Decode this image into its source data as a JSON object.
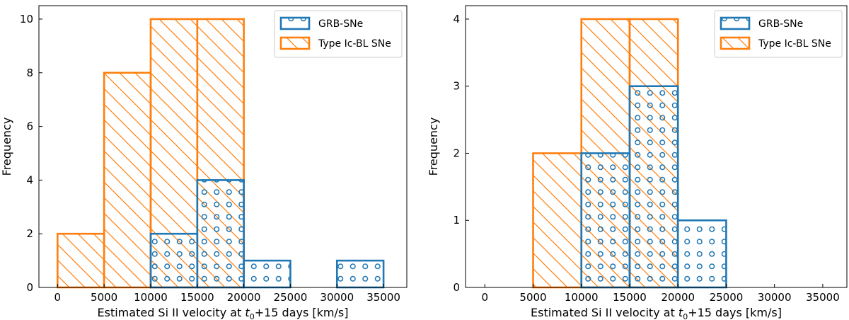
{
  "chart_data": [
    {
      "type": "bar",
      "subtype": "histogram",
      "xlabel_prefix": "Estimated Si II velocity at ",
      "xlabel_var": "t",
      "xlabel_sub": "0",
      "xlabel_suffix": "+15 days [km/s]",
      "ylabel": "Frequency",
      "xlim": [
        -2000,
        37500
      ],
      "ylim": [
        0,
        10.5
      ],
      "xticks": [
        0,
        5000,
        10000,
        15000,
        20000,
        25000,
        30000,
        35000
      ],
      "yticks": [
        0,
        2,
        4,
        6,
        8,
        10
      ],
      "bin_edges": [
        0,
        5000,
        10000,
        15000,
        20000,
        25000,
        30000,
        35000
      ],
      "series": [
        {
          "name": "Type Ic-BL SNe",
          "color": "#ff7f0e",
          "hatch": "diagonal",
          "values": [
            2,
            8,
            10,
            10,
            0,
            0,
            0
          ]
        },
        {
          "name": "GRB-SNe",
          "color": "#1f77b4",
          "hatch": "circles",
          "values": [
            0,
            0,
            2,
            4,
            1,
            0,
            1
          ]
        }
      ],
      "legend": {
        "position": "top-right",
        "entries": [
          "GRB-SNe",
          "Type Ic-BL SNe"
        ]
      }
    },
    {
      "type": "bar",
      "subtype": "histogram",
      "xlabel_prefix": "Estimated Si II velocity at ",
      "xlabel_var": "t",
      "xlabel_sub": "0",
      "xlabel_suffix": "+15 days [km/s]",
      "ylabel": "Frequency",
      "xlim": [
        -2000,
        37500
      ],
      "ylim": [
        0,
        4.2
      ],
      "xticks": [
        0,
        5000,
        10000,
        15000,
        20000,
        25000,
        30000,
        35000
      ],
      "yticks": [
        0,
        1,
        2,
        3,
        4
      ],
      "bin_edges": [
        5000,
        10000,
        15000,
        20000,
        25000
      ],
      "series": [
        {
          "name": "Type Ic-BL SNe",
          "color": "#ff7f0e",
          "hatch": "diagonal",
          "values": [
            2,
            4,
            4,
            0
          ]
        },
        {
          "name": "GRB-SNe",
          "color": "#1f77b4",
          "hatch": "circles",
          "values": [
            0,
            2,
            3,
            1
          ]
        }
      ],
      "legend": {
        "position": "top-right",
        "entries": [
          "GRB-SNe",
          "Type Ic-BL SNe"
        ]
      }
    }
  ]
}
